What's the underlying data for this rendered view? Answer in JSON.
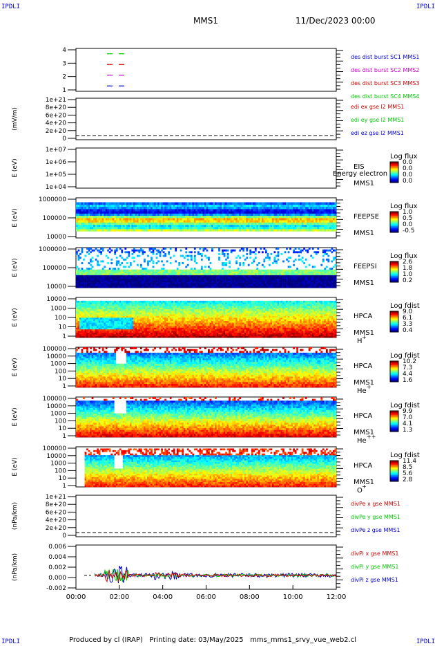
{
  "corners": {
    "tl": "IPDLI",
    "tr": "IPDLI",
    "bl": "IPDLI",
    "br": "IPDLI"
  },
  "header": {
    "spacecraft": "MMS1",
    "datetime": "11/Dec/2023 00:00"
  },
  "footer": "Produced by cl (IRAP)   Printing date: 03/May/2025   mms_mms1_srvy_vue_web2.cl",
  "time_axis": {
    "ticks": [
      "00:00",
      "02:00",
      "04:00",
      "06:00",
      "08:00",
      "10:00",
      "12:00"
    ]
  },
  "chart_data": [
    {
      "type": "line",
      "ylabel": "",
      "yticks": [
        "4",
        "3",
        "2",
        "1"
      ],
      "ylim": [
        0.5,
        4.5
      ],
      "series": [
        {
          "name": "des dist burst SC1 MMS1",
          "color": "#0000c8",
          "y": 1
        },
        {
          "name": "des dist burst SC2 MMS2",
          "color": "#c800c8",
          "y": 2
        },
        {
          "name": "des dist burst SC3 MMS3",
          "color": "#c80000",
          "y": 3
        },
        {
          "name": "des dist burst SC4 MMS4",
          "color": "#00c800",
          "y": 4
        }
      ]
    },
    {
      "type": "line",
      "ylabel": "(mV/m)",
      "yticks": [
        "1e+21",
        "8e+20",
        "6e+20",
        "4e+20",
        "2e+20",
        "0"
      ],
      "series": [
        {
          "name": "edi ex gse l2 MMS1",
          "color": "#c80000"
        },
        {
          "name": "edi ey gse l2 MMS1",
          "color": "#00c800"
        },
        {
          "name": "edi ez gse l2 MMS1",
          "color": "#0000c8"
        }
      ]
    },
    {
      "type": "heatmap",
      "ylabel": "E (eV)",
      "yticks": [
        "1e+07",
        "1e+06",
        "1e+05",
        "1e+04"
      ],
      "instrument": [
        "EIS",
        "MMS1"
      ],
      "overlay": "Energy electron to",
      "colorbar_title": "Log flux",
      "colorbar_ticks": [
        "0.0",
        "0.0",
        "0.0",
        "0.0"
      ]
    },
    {
      "type": "heatmap",
      "ylabel": "E (eV)",
      "yticks": [
        "1000000",
        "100000",
        "10000"
      ],
      "instrument": [
        "FEEPSE",
        "MMS1"
      ],
      "colorbar_title": "Log flux",
      "colorbar_ticks": [
        "1.0",
        "0.5",
        "0.0",
        "-0.5"
      ]
    },
    {
      "type": "heatmap",
      "ylabel": "E (eV)",
      "yticks": [
        "1000000",
        "100000",
        "10000"
      ],
      "instrument": [
        "FEEPSI",
        "MMS1"
      ],
      "colorbar_title": "Log flux",
      "colorbar_ticks": [
        "2.6",
        "1.8",
        "1.0",
        "0.2"
      ]
    },
    {
      "type": "heatmap",
      "ylabel": "E (eV)",
      "yticks": [
        "10000",
        "1000",
        "100",
        "10",
        "1"
      ],
      "instrument": [
        "HPCA",
        "MMS1"
      ],
      "species": "H",
      "charge": "+",
      "colorbar_title": "Log fdist",
      "colorbar_ticks": [
        "9.0",
        "6.1",
        "3.3",
        "0.4"
      ]
    },
    {
      "type": "heatmap",
      "ylabel": "E (eV)",
      "yticks": [
        "100000",
        "10000",
        "1000",
        "100",
        "10",
        "1"
      ],
      "instrument": [
        "HPCA",
        "MMS1"
      ],
      "species": "He",
      "charge": "+",
      "colorbar_title": "Log fdist",
      "colorbar_ticks": [
        "10.2",
        "7.3",
        "4.4",
        "1.6"
      ]
    },
    {
      "type": "heatmap",
      "ylabel": "E (eV)",
      "yticks": [
        "100000",
        "10000",
        "1000",
        "100",
        "10",
        "1"
      ],
      "instrument": [
        "HPCA",
        "MMS1"
      ],
      "species": "He",
      "charge": "++",
      "colorbar_title": "Log fdist",
      "colorbar_ticks": [
        "9.9",
        "7.0",
        "4.1",
        "1.3"
      ]
    },
    {
      "type": "heatmap",
      "ylabel": "E (eV)",
      "yticks": [
        "100000",
        "10000",
        "1000",
        "100",
        "10",
        "1"
      ],
      "instrument": [
        "HPCA",
        "MMS1"
      ],
      "species": "O",
      "charge": "+",
      "colorbar_title": "Log fdist",
      "colorbar_ticks": [
        "11.4",
        "8.5",
        "5.6",
        "2.8"
      ]
    },
    {
      "type": "line",
      "ylabel": "(nPa/km)",
      "yticks": [
        "1e+21",
        "8e+20",
        "6e+20",
        "4e+20",
        "2e+20",
        "0"
      ],
      "series": [
        {
          "name": "divPe x gse MMS1",
          "color": "#c80000"
        },
        {
          "name": "divPe y gse MMS1",
          "color": "#00c800"
        },
        {
          "name": "divPe z gse MMS1",
          "color": "#0000c8"
        }
      ]
    },
    {
      "type": "line",
      "ylabel": "(nPa/km)",
      "yticks": [
        "0.006",
        "0.004",
        "0.002",
        "0.000",
        "-0.002"
      ],
      "ylim": [
        -0.003,
        0.0065
      ],
      "series": [
        {
          "name": "divPi x gse MMS1",
          "color": "#c80000"
        },
        {
          "name": "divPi y gse MMS1",
          "color": "#00c800"
        },
        {
          "name": "divPi z gse MMS1",
          "color": "#0000c8"
        }
      ]
    }
  ]
}
